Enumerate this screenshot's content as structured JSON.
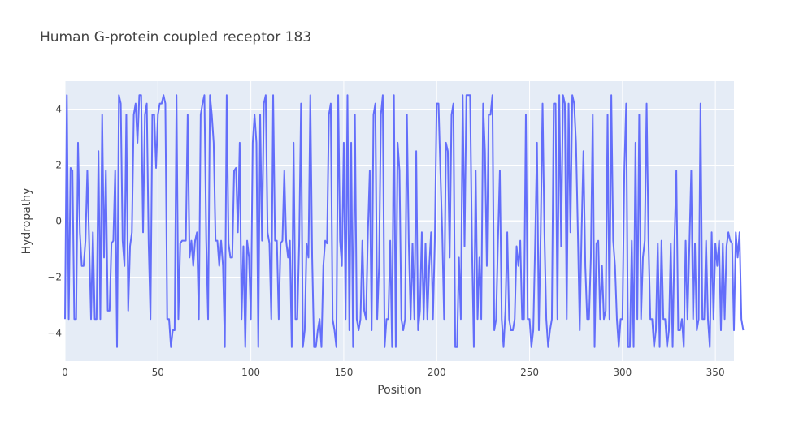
{
  "chart_data": {
    "type": "line",
    "title": "Human G-protein coupled receptor 183",
    "xlabel": "Position",
    "ylabel": "Hydropathy",
    "xlim": [
      0,
      360
    ],
    "ylim": [
      -5,
      5
    ],
    "x_ticks": [
      0,
      50,
      100,
      150,
      200,
      250,
      300,
      350
    ],
    "y_ticks": [
      -4,
      -2,
      0,
      2,
      4
    ],
    "grid": true,
    "colors": {
      "line": "#636efa",
      "plot_bg": "#e5ecf6",
      "grid": "#ffffff"
    },
    "x_start": 0,
    "y": [
      -3.5,
      4.5,
      -3.5,
      1.9,
      1.8,
      -3.5,
      -3.5,
      2.8,
      -0.4,
      -1.6,
      -1.6,
      -0.7,
      1.8,
      -0.8,
      -3.5,
      -0.4,
      -3.5,
      -3.5,
      2.5,
      -3.5,
      3.8,
      -1.3,
      1.8,
      -3.2,
      -3.2,
      -0.8,
      -0.7,
      1.8,
      -4.5,
      4.5,
      4.2,
      -0.7,
      -1.6,
      3.8,
      -3.2,
      -0.9,
      -0.4,
      3.8,
      4.2,
      2.8,
      4.5,
      4.5,
      -0.4,
      3.8,
      4.2,
      -0.8,
      -3.5,
      3.8,
      3.8,
      1.9,
      3.8,
      4.2,
      4.2,
      4.5,
      4.2,
      -3.5,
      -3.5,
      -4.5,
      -3.9,
      -3.9,
      4.5,
      -3.5,
      -0.8,
      -0.7,
      -0.7,
      -0.7,
      3.8,
      -1.3,
      -0.7,
      -1.6,
      -0.7,
      -0.4,
      -3.5,
      3.8,
      4.2,
      4.5,
      -0.7,
      -3.5,
      4.5,
      3.8,
      2.8,
      -0.7,
      -0.7,
      -1.6,
      -0.7,
      -1.6,
      -4.5,
      4.5,
      -0.8,
      -1.3,
      -1.3,
      1.8,
      1.9,
      -0.4,
      2.8,
      -3.5,
      -0.9,
      -4.5,
      -0.7,
      -1.3,
      -3.5,
      2.8,
      3.8,
      2.8,
      -4.5,
      3.8,
      -0.7,
      4.2,
      4.5,
      -0.4,
      -0.8,
      -3.5,
      4.5,
      -0.7,
      -0.7,
      -3.5,
      -0.8,
      -0.7,
      1.8,
      -0.7,
      -1.3,
      -0.7,
      -4.5,
      2.8,
      -3.5,
      -3.5,
      -0.8,
      4.2,
      -4.5,
      -3.9,
      -0.8,
      -1.3,
      4.5,
      -1.3,
      -4.5,
      -4.5,
      -3.9,
      -3.5,
      -4.5,
      -1.6,
      -0.7,
      -0.8,
      3.8,
      4.2,
      -3.5,
      -3.9,
      -4.5,
      4.5,
      -0.7,
      -1.6,
      2.8,
      -3.5,
      4.5,
      -3.9,
      2.8,
      -4.5,
      3.8,
      -3.5,
      -3.9,
      -3.5,
      -0.7,
      -3.2,
      -3.5,
      -0.4,
      1.8,
      -3.9,
      3.8,
      4.2,
      -3.5,
      -1.6,
      3.8,
      4.5,
      -4.5,
      -3.5,
      -3.5,
      -0.7,
      -4.5,
      4.5,
      -4.5,
      2.8,
      1.8,
      -3.5,
      -3.9,
      -3.5,
      3.8,
      -0.8,
      -3.5,
      -0.8,
      -3.5,
      2.5,
      -3.9,
      -3.2,
      -0.4,
      -3.5,
      -0.8,
      -3.5,
      -1.6,
      -0.4,
      -3.5,
      -0.7,
      4.2,
      4.2,
      1.8,
      -0.4,
      -3.5,
      2.8,
      2.5,
      -1.3,
      3.8,
      4.2,
      -4.5,
      -4.5,
      -1.3,
      -3.5,
      4.5,
      -0.9,
      4.5,
      4.5,
      4.5,
      -0.8,
      -4.5,
      1.8,
      -3.5,
      -1.3,
      -3.5,
      4.2,
      2.5,
      -1.6,
      3.8,
      3.8,
      4.5,
      -3.9,
      -3.5,
      -0.7,
      1.8,
      -3.5,
      -4.5,
      -3.2,
      -0.4,
      -3.5,
      -3.9,
      -3.9,
      -3.5,
      -0.9,
      -1.6,
      -0.7,
      -3.5,
      -3.5,
      3.8,
      -3.5,
      -3.5,
      -4.5,
      -3.9,
      -0.8,
      2.8,
      -3.9,
      -0.4,
      4.2,
      -0.4,
      -3.5,
      -4.5,
      -3.9,
      -3.5,
      4.2,
      4.2,
      -3.5,
      4.5,
      -0.9,
      4.5,
      4.2,
      -3.5,
      4.2,
      -0.4,
      4.5,
      4.2,
      2.8,
      -0.4,
      -3.9,
      -0.4,
      2.5,
      -1.6,
      -3.5,
      -3.5,
      -1.3,
      3.8,
      -4.5,
      -0.8,
      -0.7,
      -3.5,
      -1.6,
      -3.5,
      -3.2,
      3.8,
      -3.5,
      4.5,
      -0.7,
      -1.6,
      -3.5,
      -4.5,
      -3.5,
      -3.5,
      1.8,
      4.2,
      -4.5,
      -4.5,
      -0.7,
      -4.5,
      2.8,
      -3.5,
      3.8,
      -3.5,
      -1.3,
      -0.7,
      4.2,
      -0.7,
      -3.5,
      -3.5,
      -4.5,
      -3.9,
      -0.8,
      -4.5,
      -0.7,
      -3.5,
      -3.5,
      -4.5,
      -3.9,
      -0.8,
      -4.5,
      -0.7,
      1.8,
      -3.9,
      -3.9,
      -3.5,
      -4.5,
      -0.7,
      -3.5,
      -0.9,
      1.8,
      -3.5,
      -0.8,
      -3.9,
      -3.5,
      4.2,
      -3.5,
      -3.5,
      -0.7,
      -3.5,
      -4.5,
      -0.4,
      -3.5,
      -0.8,
      -1.6,
      -0.7,
      -3.9,
      -0.8,
      -3.5,
      -0.9,
      -0.4,
      -0.7,
      -0.8,
      -3.9,
      -0.4,
      -1.3,
      -0.4,
      -3.5,
      -3.9
    ]
  }
}
